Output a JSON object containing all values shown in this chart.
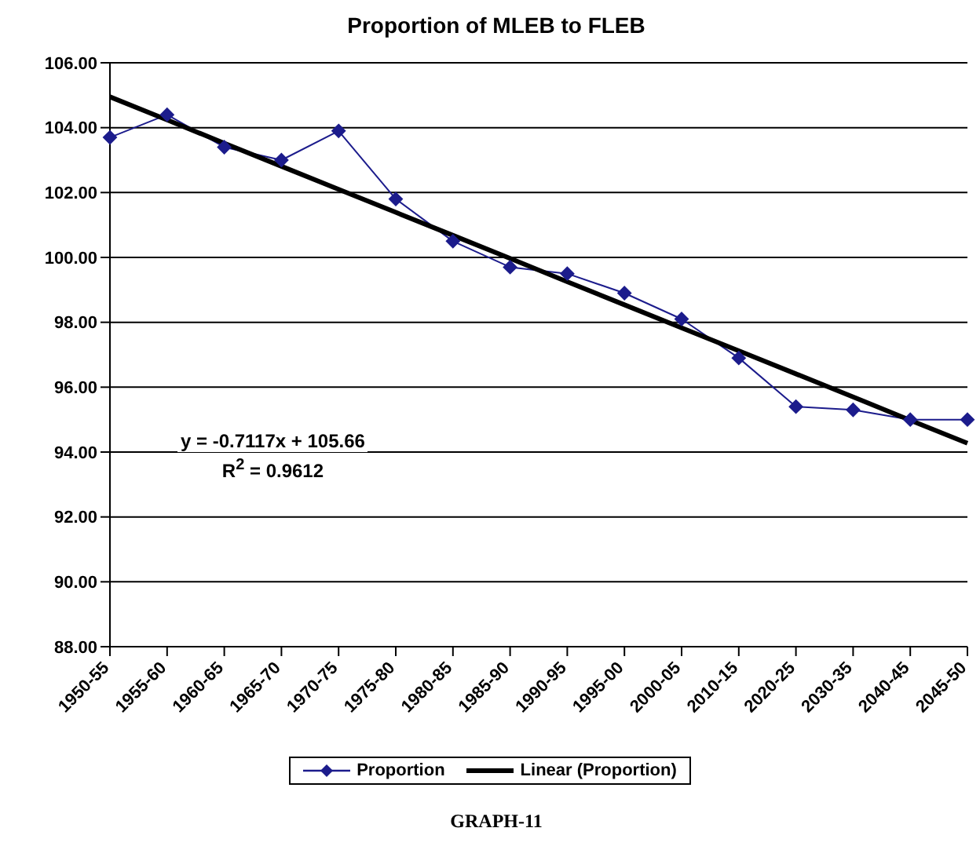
{
  "chart_data": {
    "type": "line",
    "title": "Proportion of MLEB to FLEB",
    "categories": [
      "1950-55",
      "1955-60",
      "1960-65",
      "1965-70",
      "1970-75",
      "1975-80",
      "1980-85",
      "1985-90",
      "1990-95",
      "1995-00",
      "2000-05",
      "2010-15",
      "2020-25",
      "2030-35",
      "2040-45",
      "2045-50"
    ],
    "series": [
      {
        "name": "Proportion",
        "color": "#1c1c8c",
        "marker": "diamond",
        "values": [
          103.7,
          104.4,
          103.4,
          103.0,
          103.9,
          101.8,
          100.5,
          99.7,
          99.5,
          98.9,
          98.1,
          96.9,
          95.4,
          95.3,
          95.0,
          95.0
        ]
      },
      {
        "name": "Linear (Proportion)",
        "type": "line",
        "color": "#000000",
        "marker": "none",
        "values": [
          104.95,
          104.24,
          103.52,
          102.81,
          102.1,
          101.39,
          100.68,
          99.97,
          99.25,
          98.54,
          97.83,
          97.12,
          96.41,
          95.7,
          94.98,
          94.27
        ]
      }
    ],
    "ylim": [
      88,
      106
    ],
    "yticks": [
      {
        "value": 88,
        "label": "88.00"
      },
      {
        "value": 90,
        "label": "90.00"
      },
      {
        "value": 92,
        "label": "92.00"
      },
      {
        "value": 94,
        "label": "94.00"
      },
      {
        "value": 96,
        "label": "96.00"
      },
      {
        "value": 98,
        "label": "98.00"
      },
      {
        "value": 100,
        "label": "100.00"
      },
      {
        "value": 102,
        "label": "102.00"
      },
      {
        "value": 104,
        "label": "104.00"
      },
      {
        "value": 106,
        "label": "106.00"
      }
    ],
    "grid": "y",
    "legend": "bottom",
    "annotations": [
      "y = -0.7117x + 105.66",
      "R$^{2}$ = 0.9612",
      "GRAPH-11"
    ]
  }
}
